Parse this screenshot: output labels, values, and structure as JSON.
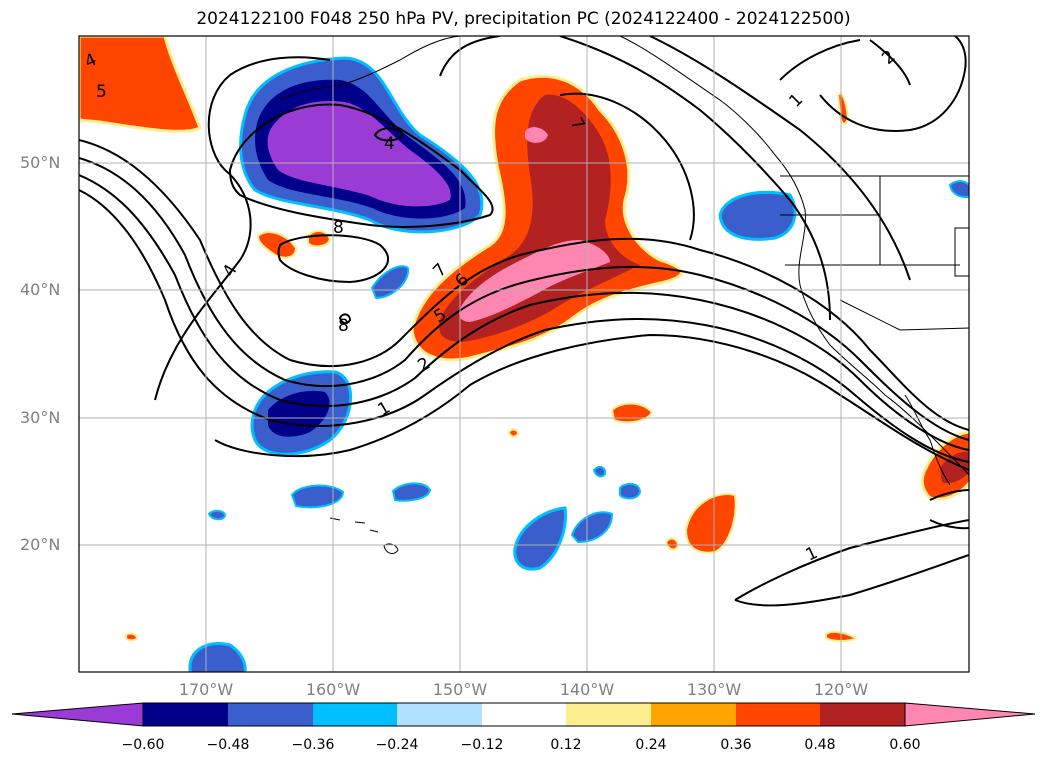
{
  "title": "2024122100 F048 250 hPa PV, precipitation PC (2024122400 - 2024122500)",
  "lat_ticks": [
    "50°N",
    "40°N",
    "30°N",
    "20°N"
  ],
  "lon_ticks": [
    "170°W",
    "160°W",
    "150°W",
    "140°W",
    "130°W",
    "120°W"
  ],
  "contour_labels": [
    "4",
    "5",
    "4",
    "8",
    "8",
    "4",
    "7",
    "6",
    "5",
    "2",
    "1",
    "7",
    "1",
    "2",
    "1"
  ],
  "colorbar": {
    "ticks": [
      "−0.60",
      "−0.48",
      "−0.36",
      "−0.24",
      "−0.12",
      "0.12",
      "0.24",
      "0.36",
      "0.48",
      "0.60"
    ],
    "colors": [
      "#9b3bd6",
      "#00008b",
      "#3a5fcd",
      "#00bfff",
      "#b0e2ff",
      "#ffffff",
      "#fdee8f",
      "#ffa500",
      "#ff4500",
      "#b22222",
      "#ff86b0"
    ]
  },
  "legend_colors": {
    "purple": "#9b3bd6",
    "navy": "#00008b",
    "royal_blue": "#3a5fcd",
    "light_blue": "#b0e2ff",
    "orange_red": "#ff4500",
    "firebrick": "#b22222",
    "pink": "#ff86b0",
    "orange": "#ffa500",
    "yellow": "#fdee8f"
  }
}
